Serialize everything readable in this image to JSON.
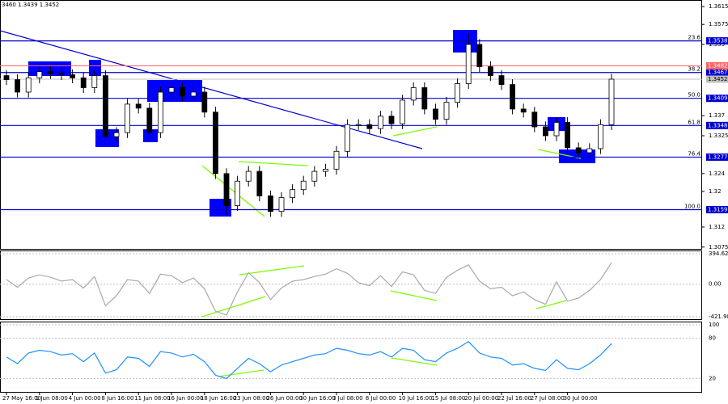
{
  "chart_data": [
    {
      "type": "candlestick",
      "title": "3460 1.3439 1.3452",
      "color": "#000000",
      "up_fill": "#ffffff",
      "categories": [
        "27 May 16:00",
        null,
        null,
        "1 Jun 08:00",
        null,
        null,
        "4 Jun 00:00",
        null,
        null,
        "8 Jun 16:00",
        null,
        null,
        "11 Jun 08:00",
        null,
        null,
        "16 Jun 00:00",
        null,
        null,
        "18 Jun 16:00",
        null,
        null,
        "23 Jun 08:00",
        null,
        null,
        "26 Jun 00:00",
        null,
        null,
        "30 Jun 16:00",
        null,
        null,
        "3 Jul 08:00",
        null,
        null,
        "8 Jul 00:00",
        null,
        null,
        "10 Jul 16:00",
        null,
        null,
        "15 Jul 08:00",
        null,
        null,
        "20 Jul 00:00",
        null,
        null,
        "22 Jul 16:00",
        null,
        null,
        "27 Jul 08:00",
        null,
        null,
        "30 Jul 00:00",
        null,
        null,
        null,
        null
      ],
      "open": [
        1.346,
        1.3451,
        1.3423,
        1.3455,
        1.3469,
        1.3465,
        1.3462,
        1.3455,
        1.3433,
        1.346,
        1.3323,
        1.3332,
        1.3396,
        1.3387,
        1.3332,
        1.3423,
        1.3433,
        1.3414,
        1.3423,
        1.3378,
        1.324,
        1.3168,
        1.3223,
        1.3245,
        1.319,
        1.3155,
        1.3186,
        1.3204,
        1.3223,
        1.3245,
        1.325,
        1.329,
        1.335,
        1.335,
        1.3341,
        1.3369,
        1.3352,
        1.3405,
        1.3433,
        1.3385,
        1.3362,
        1.34,
        1.3442,
        1.353,
        1.348,
        1.346,
        1.344,
        1.3385,
        1.3378,
        1.3345,
        1.3325,
        1.3355,
        1.3298,
        1.3287,
        1.3296,
        1.335
      ],
      "high": [
        1.3472,
        1.3463,
        1.3467,
        1.3481,
        1.3481,
        1.3477,
        1.3474,
        1.3467,
        1.3472,
        1.3472,
        1.3344,
        1.3408,
        1.3408,
        1.3399,
        1.3435,
        1.3445,
        1.3445,
        1.3435,
        1.3435,
        1.339,
        1.3252,
        1.3235,
        1.3257,
        1.3257,
        1.3202,
        1.3198,
        1.3216,
        1.3235,
        1.3257,
        1.3262,
        1.3302,
        1.3362,
        1.3362,
        1.3362,
        1.3381,
        1.3381,
        1.3417,
        1.3445,
        1.3445,
        1.3397,
        1.3412,
        1.3454,
        1.3555,
        1.3542,
        1.3492,
        1.3472,
        1.3452,
        1.3397,
        1.339,
        1.3357,
        1.3367,
        1.3367,
        1.331,
        1.3308,
        1.3362,
        1.3464
      ],
      "low": [
        1.3439,
        1.3411,
        1.3411,
        1.3443,
        1.3453,
        1.345,
        1.3443,
        1.3421,
        1.3421,
        1.3311,
        1.3311,
        1.332,
        1.3375,
        1.332,
        1.332,
        1.3411,
        1.3402,
        1.3402,
        1.3366,
        1.3228,
        1.3148,
        1.3156,
        1.3211,
        1.3178,
        1.3143,
        1.3143,
        1.3174,
        1.3192,
        1.3211,
        1.3233,
        1.3238,
        1.3278,
        1.3338,
        1.3329,
        1.3329,
        1.334,
        1.334,
        1.3393,
        1.3373,
        1.335,
        1.335,
        1.3388,
        1.343,
        1.3468,
        1.3448,
        1.3428,
        1.3373,
        1.3366,
        1.3333,
        1.3313,
        1.3313,
        1.3286,
        1.3275,
        1.3275,
        1.3284,
        1.3338
      ],
      "close": [
        1.3451,
        1.3423,
        1.3455,
        1.3469,
        1.3465,
        1.3462,
        1.3455,
        1.3433,
        1.346,
        1.3323,
        1.3332,
        1.3396,
        1.3387,
        1.3332,
        1.3423,
        1.3433,
        1.3414,
        1.3423,
        1.3378,
        1.324,
        1.3168,
        1.3223,
        1.3245,
        1.319,
        1.3155,
        1.3186,
        1.3204,
        1.3223,
        1.3245,
        1.325,
        1.329,
        1.335,
        1.335,
        1.3341,
        1.3369,
        1.3352,
        1.3405,
        1.3433,
        1.3385,
        1.3362,
        1.34,
        1.3442,
        1.353,
        1.348,
        1.346,
        1.344,
        1.3385,
        1.3378,
        1.3345,
        1.3325,
        1.3355,
        1.3298,
        1.3287,
        1.3296,
        1.335,
        1.3452
      ],
      "ylim": [
        1.3071,
        1.3628
      ],
      "yticks": [
        1.3615,
        1.3575,
        1.353,
        1.337,
        1.3325,
        1.324,
        1.32,
        1.312,
        1.3075
      ],
      "level_color": "#0000cd",
      "levels": [
        {
          "label": "23.6",
          "value": 1.3538
        },
        {
          "label": "38.2",
          "value": 1.3467
        },
        {
          "label": "50.0",
          "value": 1.3409
        },
        {
          "label": "61.8",
          "value": 1.3348
        },
        {
          "label": "76.4",
          "value": 1.3277
        },
        {
          "label": "100.0",
          "value": 1.3159
        }
      ],
      "marker_lines": [
        {
          "value": 1.3482,
          "color": "#ff6464"
        },
        {
          "value": 1.3452,
          "color": "#c0c0c0"
        }
      ]
    },
    {
      "type": "line",
      "color": "#a9a9a9",
      "values": [
        60,
        -40,
        80,
        120,
        90,
        40,
        60,
        -50,
        100,
        -280,
        -150,
        60,
        40,
        -120,
        130,
        110,
        20,
        80,
        -60,
        -350,
        -400,
        -100,
        150,
        20,
        -200,
        -50,
        40,
        60,
        100,
        130,
        200,
        140,
        20,
        -20,
        110,
        -30,
        160,
        120,
        -80,
        -120,
        90,
        180,
        250,
        40,
        -60,
        -40,
        -150,
        -100,
        -200,
        -260,
        30,
        -220,
        -180,
        -80,
        60,
        280
      ],
      "ylim": [
        -453,
        426
      ],
      "yticks": [
        394.6289,
        {
          "value": 0,
          "label": "0.00"
        },
        -421.987
      ]
    },
    {
      "type": "line",
      "color": "#1e90ff",
      "values": [
        52,
        42,
        58,
        62,
        60,
        55,
        57,
        45,
        58,
        28,
        33,
        52,
        50,
        38,
        60,
        58,
        52,
        56,
        45,
        25,
        20,
        35,
        50,
        42,
        30,
        40,
        45,
        50,
        55,
        57,
        65,
        62,
        57,
        55,
        60,
        52,
        65,
        62,
        48,
        45,
        58,
        65,
        75,
        58,
        52,
        50,
        40,
        42,
        35,
        32,
        48,
        35,
        33,
        42,
        55,
        72
      ],
      "ylim": [
        0,
        100
      ],
      "yticks": [
        100,
        80,
        20
      ]
    }
  ]
}
